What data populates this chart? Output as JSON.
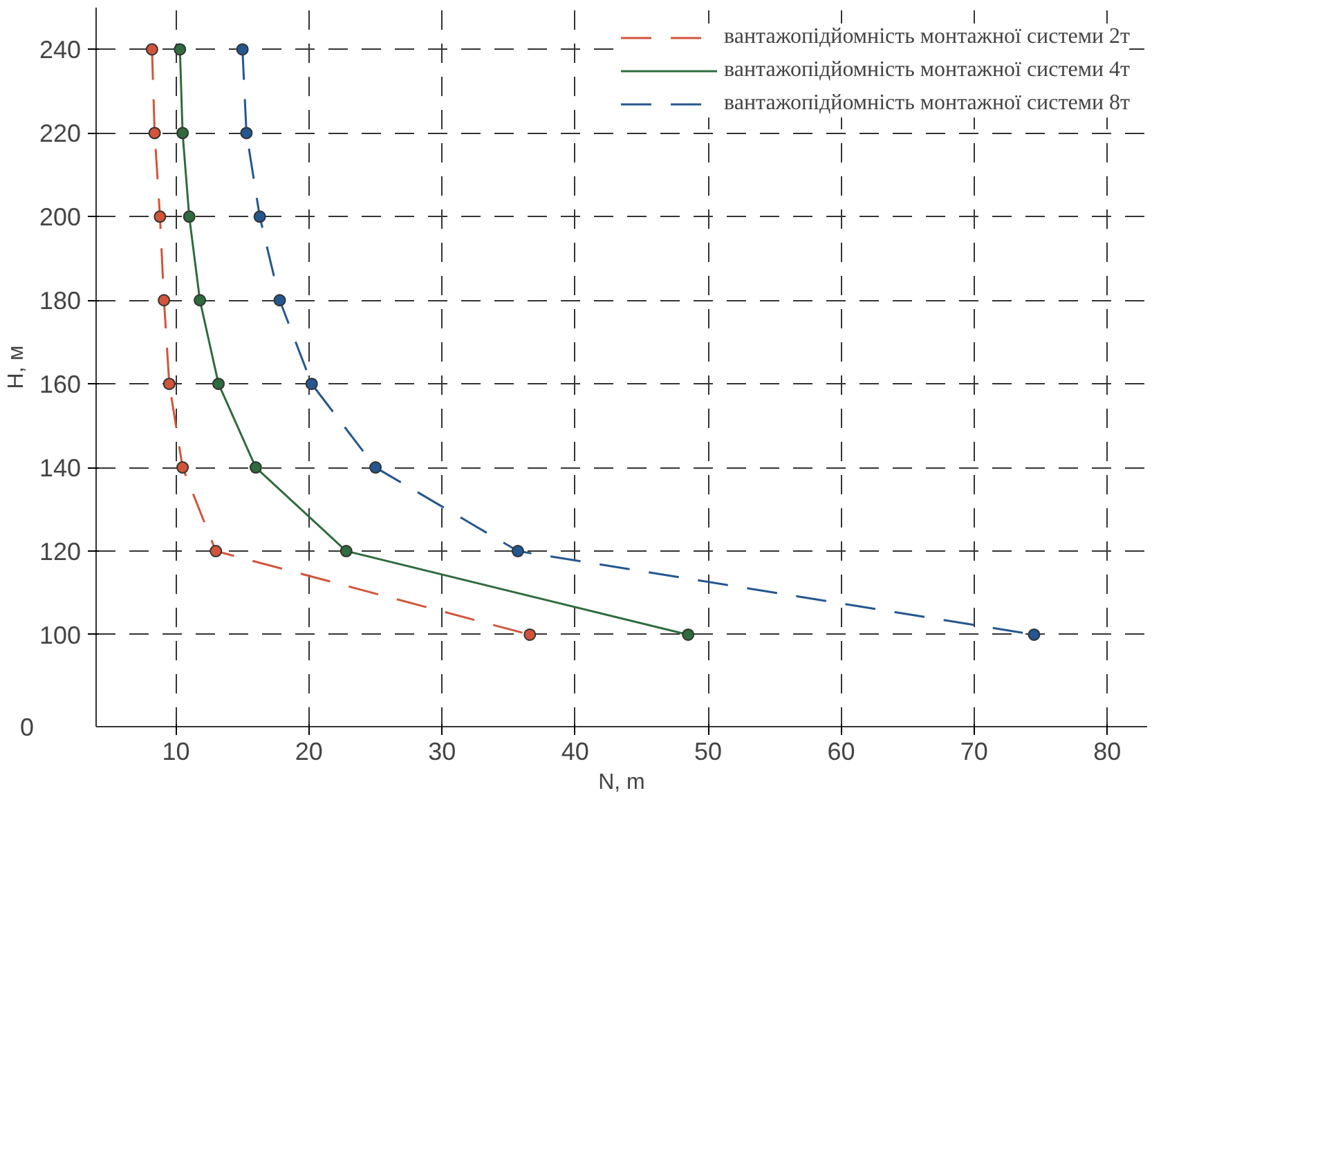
{
  "chart_data": {
    "type": "line",
    "xlabel": "N, m",
    "ylabel": "H, м",
    "xlim": [
      4,
      83
    ],
    "ylim": [
      78,
      250
    ],
    "xticks": [
      10,
      20,
      30,
      40,
      50,
      60,
      70,
      80
    ],
    "yticks": [
      100,
      120,
      140,
      160,
      180,
      200,
      220,
      240
    ],
    "annotations": [
      "0"
    ],
    "grid": true,
    "marker": "circle",
    "legend": "top right",
    "series": [
      {
        "name": "вантажопідйомність монтажної системи 2т",
        "color": "#d2553a",
        "line_style": "dashed",
        "x": [
          8.2,
          8.4,
          8.8,
          9.1,
          9.5,
          10.5,
          13.0,
          36.6
        ],
        "values": [
          240,
          220,
          200,
          180,
          160,
          140,
          120,
          100
        ]
      },
      {
        "name": "вантажопідйомність монтажної системи 4т",
        "color": "#2f6b3c",
        "line_style": "solid",
        "x": [
          10.3,
          10.5,
          11.0,
          11.8,
          13.2,
          16.0,
          22.8,
          48.5
        ],
        "values": [
          240,
          220,
          200,
          180,
          160,
          140,
          120,
          100
        ]
      },
      {
        "name": "вантажопідйомність монтажної системи 8т",
        "color": "#24578f",
        "line_style": "dashed",
        "x": [
          15.0,
          15.3,
          16.3,
          17.8,
          20.2,
          25.0,
          35.7,
          74.5
        ],
        "values": [
          240,
          220,
          200,
          180,
          160,
          140,
          120,
          100
        ]
      }
    ]
  }
}
